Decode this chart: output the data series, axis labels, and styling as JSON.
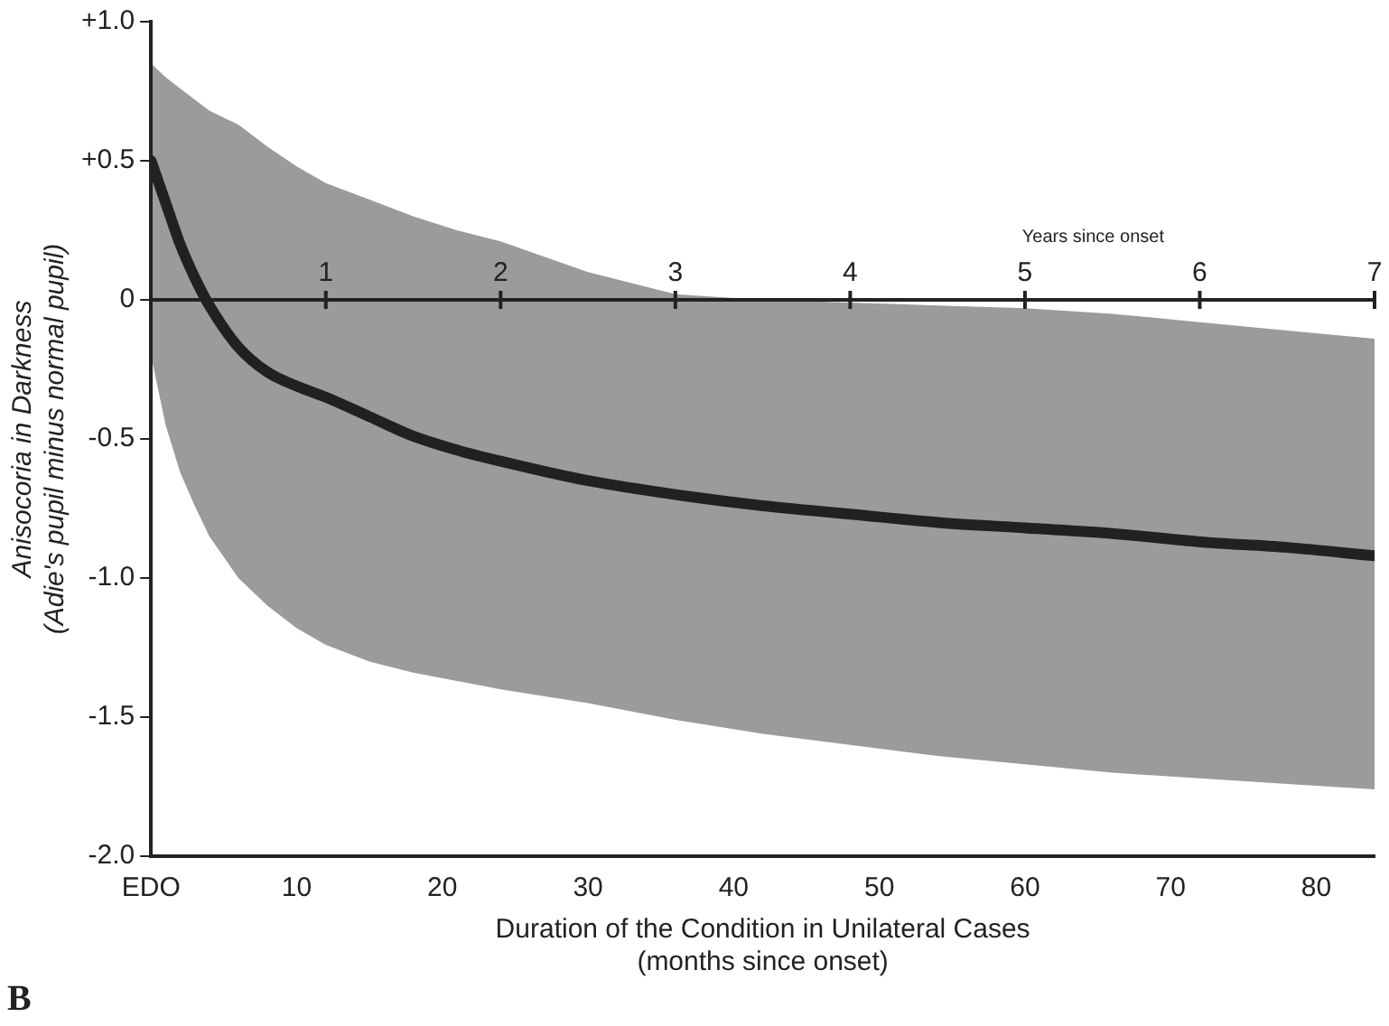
{
  "chart_data": {
    "type": "line",
    "xlabel": "Duration of the Condition in Unilateral Cases\n(months since onset)",
    "ylabel": "Anisocoria in Darkness\n(Adie's pupil minus normal pupil)",
    "x2label": "Years since onset",
    "x": [
      0,
      1,
      2,
      3,
      4,
      6,
      8,
      10,
      12,
      15,
      18,
      21,
      24,
      30,
      36,
      42,
      48,
      54,
      60,
      66,
      72,
      78,
      84
    ],
    "series": [
      {
        "color": "#222222",
        "values": [
          0.5,
          0.35,
          0.2,
          0.08,
          -0.02,
          -0.17,
          -0.26,
          -0.31,
          -0.35,
          -0.42,
          -0.49,
          -0.54,
          -0.58,
          -0.65,
          -0.7,
          -0.74,
          -0.77,
          -0.8,
          -0.82,
          -0.84,
          -0.87,
          -0.89,
          -0.92
        ],
        "upper": [
          0.85,
          0.8,
          0.76,
          0.72,
          0.68,
          0.63,
          0.55,
          0.48,
          0.42,
          0.36,
          0.3,
          0.25,
          0.21,
          0.1,
          0.02,
          0.0,
          -0.01,
          -0.02,
          -0.03,
          -0.05,
          -0.08,
          -0.11,
          -0.14
        ],
        "lower": [
          -0.2,
          -0.45,
          -0.62,
          -0.74,
          -0.85,
          -1.0,
          -1.1,
          -1.18,
          -1.24,
          -1.3,
          -1.34,
          -1.37,
          -1.4,
          -1.45,
          -1.51,
          -1.56,
          -1.6,
          -1.64,
          -1.67,
          -1.7,
          -1.72,
          -1.74,
          -1.76
        ]
      }
    ],
    "xlim": [
      0,
      84
    ],
    "xticks": [
      {
        "value": 0,
        "label": "EDO"
      },
      10,
      20,
      30,
      40,
      50,
      60,
      70,
      80
    ],
    "ylim": [
      -2.0,
      1.0
    ],
    "yticks": [
      {
        "value": -2,
        "label": "-2.0"
      },
      -1.5,
      {
        "value": -1,
        "label": "-1.0"
      },
      -0.5,
      0,
      {
        "value": 0.5,
        "label": "+0.5"
      },
      {
        "value": 1,
        "label": "+1.0"
      }
    ],
    "x2lim": [
      0,
      7
    ],
    "x2ticks": [
      1,
      2,
      3,
      4,
      5,
      6,
      7
    ],
    "annotations": [
      "B"
    ],
    "grid": false,
    "legend": false,
    "marker": "none",
    "line_style": "solid"
  }
}
